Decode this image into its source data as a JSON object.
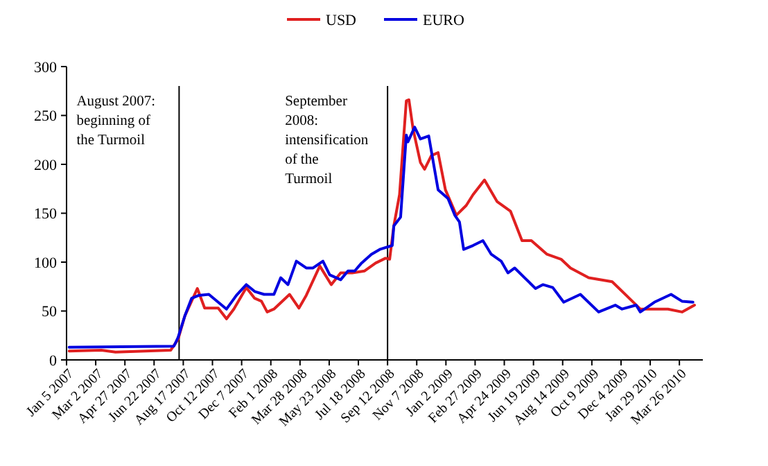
{
  "chart_data": {
    "type": "line",
    "legend": "top",
    "grid": false,
    "xlim": [
      "2007-01-05",
      "2010-05-10"
    ],
    "ylim": [
      0,
      300
    ],
    "yticks": [
      0,
      50,
      100,
      150,
      200,
      250,
      300
    ],
    "xticks": [
      {
        "value": "2007-01-05",
        "label": "Jan 5 2007"
      },
      {
        "value": "2007-03-02",
        "label": "Mar 2 2007"
      },
      {
        "value": "2007-04-27",
        "label": "Apr 27 2007"
      },
      {
        "value": "2007-06-22",
        "label": "Jun 22 2007"
      },
      {
        "value": "2007-08-17",
        "label": "Aug 17 2007"
      },
      {
        "value": "2007-10-12",
        "label": "Oct 12 2007"
      },
      {
        "value": "2007-12-07",
        "label": "Dec 7 2007"
      },
      {
        "value": "2008-02-01",
        "label": "Feb 1 2008"
      },
      {
        "value": "2008-03-28",
        "label": "Mar 28 2008"
      },
      {
        "value": "2008-05-23",
        "label": "May 23 2008"
      },
      {
        "value": "2008-07-18",
        "label": "Jul 18 2008"
      },
      {
        "value": "2008-09-12",
        "label": "Sep 12 2008"
      },
      {
        "value": "2008-11-07",
        "label": "Nov 7 2008"
      },
      {
        "value": "2009-01-02",
        "label": "Jan 2 2009"
      },
      {
        "value": "2009-02-27",
        "label": "Feb 27 2009"
      },
      {
        "value": "2009-04-24",
        "label": "Apr 24 2009"
      },
      {
        "value": "2009-06-19",
        "label": "Jun 19 2009"
      },
      {
        "value": "2009-08-14",
        "label": "Aug 14 2009"
      },
      {
        "value": "2009-10-09",
        "label": "Oct 9 2009"
      },
      {
        "value": "2009-12-04",
        "label": "Dec 4 2009"
      },
      {
        "value": "2010-01-29",
        "label": "Jan 29 2010"
      },
      {
        "value": "2010-03-26",
        "label": "Mar 26 2010"
      }
    ],
    "ref_lines": [
      {
        "axis": "x",
        "value": "2007-08-09",
        "label": "August 2007: beginning of the Turmoil",
        "color": "#000000"
      },
      {
        "axis": "x",
        "value": "2008-09-12",
        "label": "September 2008: intensification of the Turmoil",
        "color": "#000000"
      }
    ],
    "series": [
      {
        "name": "USD",
        "color": "#e02020",
        "x": [
          "2007-01-10",
          "2007-03-13",
          "2007-04-09",
          "2007-07-24",
          "2007-08-07",
          "2007-08-20",
          "2007-09-13",
          "2007-09-27",
          "2007-10-23",
          "2007-11-08",
          "2007-11-22",
          "2007-12-16",
          "2008-01-01",
          "2008-01-14",
          "2008-01-25",
          "2008-02-07",
          "2008-03-08",
          "2008-03-26",
          "2008-04-09",
          "2008-05-05",
          "2008-05-27",
          "2008-06-14",
          "2008-07-06",
          "2008-07-30",
          "2008-08-20",
          "2008-09-08",
          "2008-09-16",
          "2008-09-24",
          "2008-10-05",
          "2008-10-18",
          "2008-10-23",
          "2008-10-31",
          "2008-11-14",
          "2008-11-22",
          "2008-12-05",
          "2008-12-18",
          "2009-01-01",
          "2009-01-22",
          "2009-02-10",
          "2009-02-23",
          "2009-03-17",
          "2009-04-10",
          "2009-05-06",
          "2009-05-28",
          "2009-06-15",
          "2009-07-15",
          "2009-08-11",
          "2009-08-29",
          "2009-10-03",
          "2009-11-17",
          "2009-12-14",
          "2010-01-10",
          "2010-02-06",
          "2010-03-04",
          "2010-03-31",
          "2010-04-24"
        ],
        "values": [
          9,
          10,
          8,
          10,
          21,
          45,
          73,
          53,
          53,
          42,
          52,
          74,
          63,
          60,
          49,
          52,
          67,
          53,
          66,
          96,
          77,
          89,
          89,
          91,
          99,
          104,
          103,
          137,
          169,
          265,
          266,
          236,
          202,
          195,
          209,
          212,
          174,
          148,
          158,
          169,
          184,
          162,
          152,
          122,
          122,
          108,
          103,
          94,
          84,
          80,
          66,
          52,
          52,
          52,
          49,
          56
        ]
      },
      {
        "name": "EURO",
        "color": "#0000e0",
        "x": [
          "2007-01-10",
          "2007-07-30",
          "2007-08-07",
          "2007-08-20",
          "2007-09-02",
          "2007-09-16",
          "2007-10-05",
          "2007-10-23",
          "2007-11-08",
          "2007-11-27",
          "2007-12-16",
          "2008-01-01",
          "2008-01-19",
          "2008-02-07",
          "2008-02-20",
          "2008-03-05",
          "2008-03-21",
          "2008-04-09",
          "2008-04-22",
          "2008-05-11",
          "2008-05-24",
          "2008-06-14",
          "2008-06-28",
          "2008-07-11",
          "2008-07-24",
          "2008-08-12",
          "2008-08-28",
          "2008-09-21",
          "2008-09-24",
          "2008-10-07",
          "2008-10-18",
          "2008-10-21",
          "2008-11-03",
          "2008-11-14",
          "2008-11-30",
          "2008-12-18",
          "2009-01-06",
          "2009-01-19",
          "2009-01-28",
          "2009-02-05",
          "2009-02-23",
          "2009-03-14",
          "2009-03-30",
          "2009-04-18",
          "2009-05-01",
          "2009-05-14",
          "2009-06-02",
          "2009-06-23",
          "2009-07-07",
          "2009-07-26",
          "2009-08-16",
          "2009-09-17",
          "2009-10-22",
          "2009-11-23",
          "2009-12-06",
          "2010-01-02",
          "2010-01-10",
          "2010-02-06",
          "2010-03-10",
          "2010-03-31",
          "2010-04-21"
        ],
        "values": [
          13,
          14,
          23,
          45,
          63,
          66,
          67,
          59,
          52,
          66,
          77,
          70,
          67,
          67,
          84,
          77,
          101,
          94,
          94,
          101,
          87,
          82,
          91,
          91,
          99,
          108,
          113,
          117,
          137,
          146,
          230,
          223,
          238,
          226,
          229,
          174,
          165,
          148,
          141,
          113,
          117,
          122,
          108,
          101,
          89,
          94,
          84,
          73,
          77,
          74,
          59,
          67,
          49,
          56,
          52,
          56,
          49,
          59,
          67,
          60,
          59
        ]
      }
    ]
  }
}
